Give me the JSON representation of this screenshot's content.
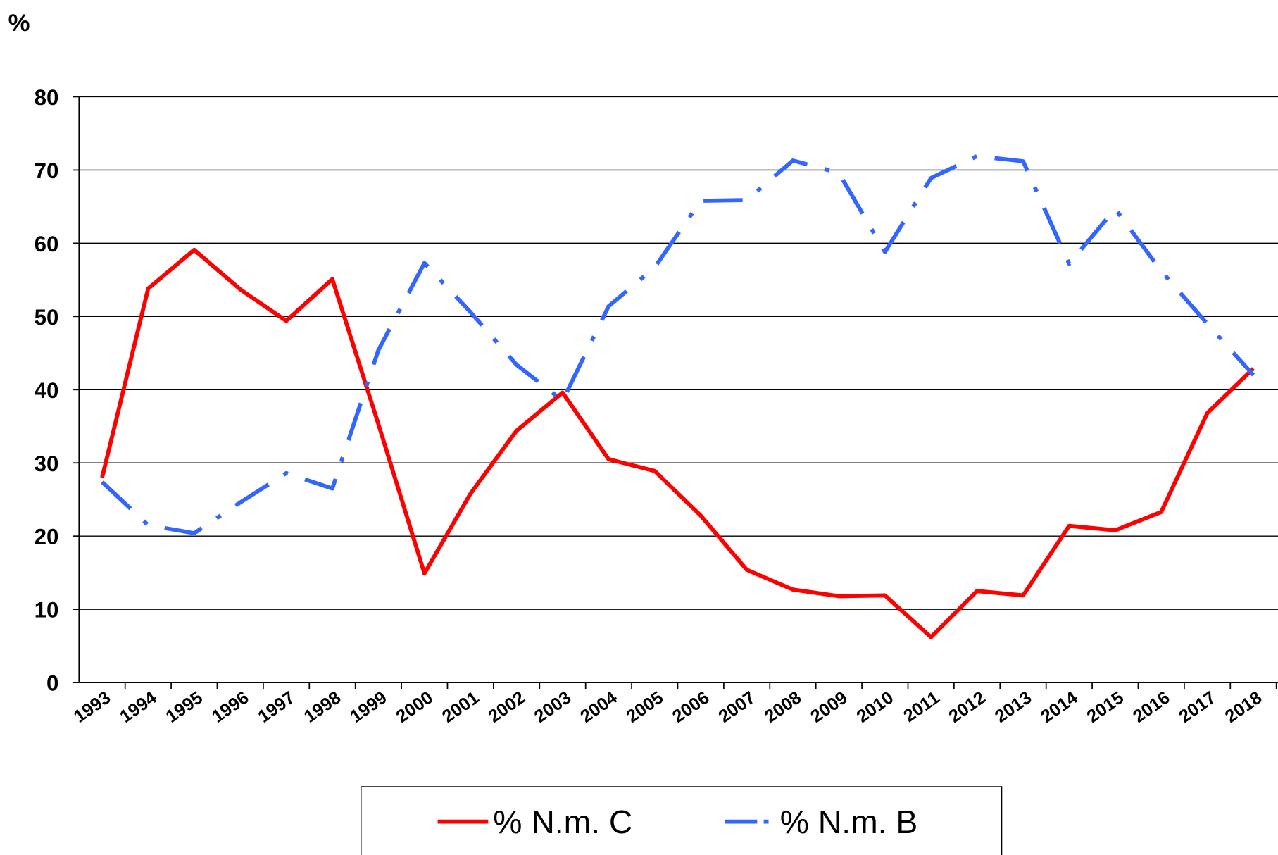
{
  "chart_data": {
    "type": "line",
    "ylabel": "%",
    "categories": [
      "1993",
      "1994",
      "1995",
      "1996",
      "1997",
      "1998",
      "1999",
      "2000",
      "2001",
      "2002",
      "2003",
      "2004",
      "2005",
      "2006",
      "2007",
      "2008",
      "2009",
      "2010",
      "2011",
      "2012",
      "2013",
      "2014",
      "2015",
      "2016",
      "2017",
      "2018"
    ],
    "series": [
      {
        "name": "% N.m. C",
        "color": "#ff0000",
        "dash": "solid",
        "values": [
          28,
          53.8,
          59.1,
          53.7,
          49.4,
          55.1,
          35.3,
          14.9,
          25.8,
          34.4,
          39.6,
          30.5,
          28.9,
          22.8,
          15.4,
          12.7,
          11.8,
          11.9,
          6.2,
          12.5,
          11.9,
          21.4,
          20.8,
          23.3,
          36.8,
          42.9
        ]
      },
      {
        "name": "% N.m. B",
        "color": "#3366ff",
        "dash": "dash-dot",
        "values": [
          27.4,
          21.5,
          20.4,
          24.6,
          28.6,
          26.5,
          45.4,
          57.3,
          50.6,
          43.4,
          38.5,
          51.4,
          56.7,
          65.8,
          65.9,
          71.3,
          69.6,
          58.8,
          68.9,
          71.9,
          71.2,
          57.2,
          64.7,
          56.2,
          49.0,
          42.0
        ]
      }
    ],
    "ylim": [
      0,
      80
    ],
    "yticks": [
      0,
      10,
      20,
      30,
      40,
      50,
      60,
      70,
      80
    ],
    "grid": true,
    "legend": "bottom"
  }
}
